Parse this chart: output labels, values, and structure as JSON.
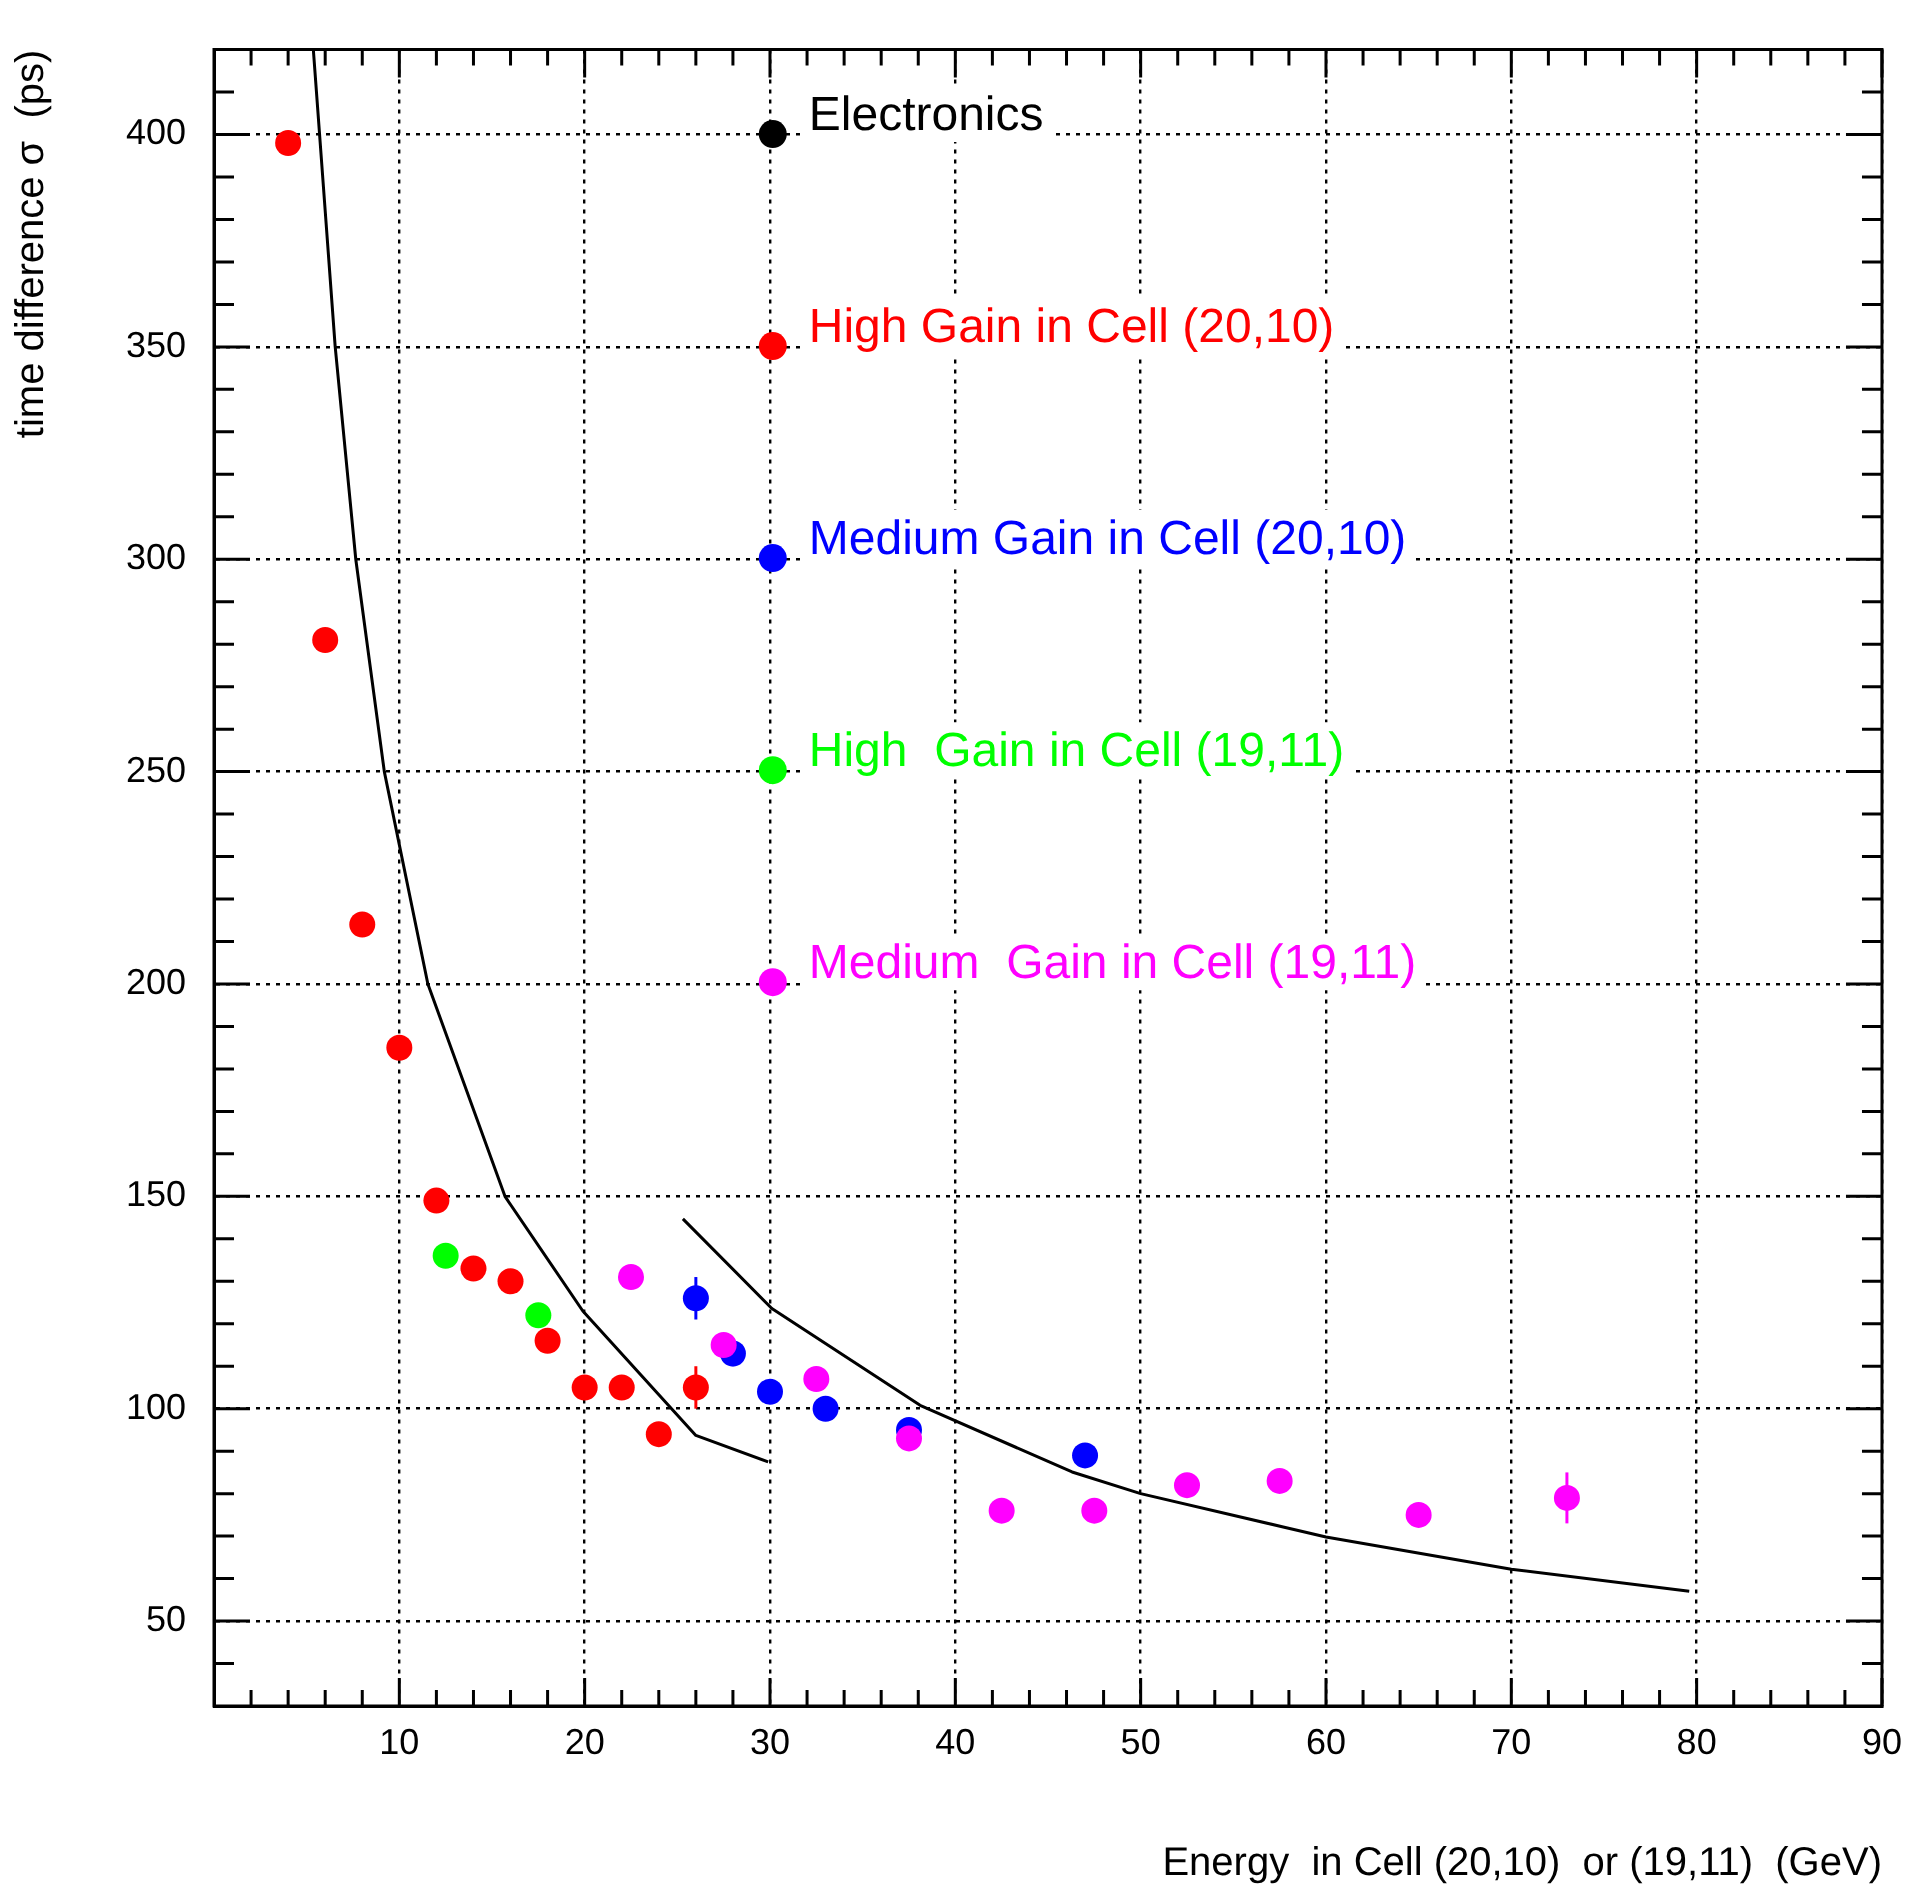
{
  "chart_data": {
    "type": "scatter",
    "xlabel": "Energy  in Cell (20,10)  or (19,11)  (GeV)",
    "ylabel": "time difference σ  (ps)",
    "xlim": [
      0,
      90
    ],
    "ylim": [
      30,
      420
    ],
    "xticks": [
      {
        "value": 2,
        "label": null
      },
      {
        "value": 4,
        "label": null
      },
      {
        "value": 6,
        "label": null
      },
      {
        "value": 8,
        "label": null
      },
      10,
      {
        "value": 12,
        "label": null
      },
      {
        "value": 14,
        "label": null
      },
      {
        "value": 16,
        "label": null
      },
      {
        "value": 18,
        "label": null
      },
      20,
      {
        "value": 22,
        "label": null
      },
      {
        "value": 24,
        "label": null
      },
      {
        "value": 26,
        "label": null
      },
      {
        "value": 28,
        "label": null
      },
      30,
      {
        "value": 32,
        "label": null
      },
      {
        "value": 34,
        "label": null
      },
      {
        "value": 36,
        "label": null
      },
      {
        "value": 38,
        "label": null
      },
      40,
      {
        "value": 42,
        "label": null
      },
      {
        "value": 44,
        "label": null
      },
      {
        "value": 46,
        "label": null
      },
      {
        "value": 48,
        "label": null
      },
      50,
      {
        "value": 52,
        "label": null
      },
      {
        "value": 54,
        "label": null
      },
      {
        "value": 56,
        "label": null
      },
      {
        "value": 58,
        "label": null
      },
      60,
      {
        "value": 62,
        "label": null
      },
      {
        "value": 64,
        "label": null
      },
      {
        "value": 66,
        "label": null
      },
      {
        "value": 68,
        "label": null
      },
      70,
      {
        "value": 72,
        "label": null
      },
      {
        "value": 74,
        "label": null
      },
      {
        "value": 76,
        "label": null
      },
      {
        "value": 78,
        "label": null
      },
      80,
      {
        "value": 82,
        "label": null
      },
      {
        "value": 84,
        "label": null
      },
      {
        "value": 86,
        "label": null
      },
      {
        "value": 88,
        "label": null
      },
      90
    ],
    "yticks": [
      {
        "value": 40,
        "label": null
      },
      50,
      {
        "value": 60,
        "label": null
      },
      {
        "value": 70,
        "label": null
      },
      {
        "value": 80,
        "label": null
      },
      {
        "value": 90,
        "label": null
      },
      100,
      {
        "value": 110,
        "label": null
      },
      {
        "value": 120,
        "label": null
      },
      {
        "value": 130,
        "label": null
      },
      {
        "value": 140,
        "label": null
      },
      150,
      {
        "value": 160,
        "label": null
      },
      {
        "value": 170,
        "label": null
      },
      {
        "value": 180,
        "label": null
      },
      {
        "value": 190,
        "label": null
      },
      200,
      {
        "value": 210,
        "label": null
      },
      {
        "value": 220,
        "label": null
      },
      {
        "value": 230,
        "label": null
      },
      {
        "value": 240,
        "label": null
      },
      250,
      {
        "value": 260,
        "label": null
      },
      {
        "value": 270,
        "label": null
      },
      {
        "value": 280,
        "label": null
      },
      {
        "value": 290,
        "label": null
      },
      300,
      {
        "value": 310,
        "label": null
      },
      {
        "value": 320,
        "label": null
      },
      {
        "value": 330,
        "label": null
      },
      {
        "value": 340,
        "label": null
      },
      350,
      {
        "value": 360,
        "label": null
      },
      {
        "value": 370,
        "label": null
      },
      {
        "value": 380,
        "label": null
      },
      {
        "value": 390,
        "label": null
      },
      400,
      {
        "value": 410,
        "label": null
      }
    ],
    "grid": true,
    "legend": "top",
    "marker": "circle",
    "series": [
      {
        "name": "Electronics",
        "type": "line",
        "marker": "none",
        "color": "#000000",
        "x": [
          5.36,
          6.54,
          7.65,
          9.19,
          11.54,
          15.7,
          19.9,
          26,
          29.9,
          27.6,
          25.3,
          30.1,
          38.1,
          46.3,
          50,
          60,
          70,
          79.6
        ],
        "values": [
          420,
          350,
          300,
          250,
          200,
          150,
          123,
          93.7,
          87.5,
          null,
          144.7,
          123.6,
          100.8,
          85.1,
          80,
          69.8,
          62.2,
          57
        ]
      },
      {
        "name": "High Gain in Cell (20,10)",
        "color": "#ff0000",
        "x": [
          4,
          6,
          8,
          10,
          12,
          14,
          16,
          18,
          20,
          22,
          24,
          26
        ],
        "values": [
          398,
          281,
          214,
          185,
          149,
          133,
          130,
          116,
          105,
          105,
          94,
          105
        ],
        "errors": [
          null,
          null,
          null,
          null,
          null,
          null,
          null,
          null,
          null,
          null,
          null,
          5
        ]
      },
      {
        "name": "Medium Gain in Cell (20,10)",
        "color": "#0000ff",
        "x": [
          26,
          28,
          30,
          33,
          37.5,
          47
        ],
        "values": [
          126,
          113,
          104,
          100,
          95,
          89
        ],
        "errors": [
          5,
          3,
          null,
          null,
          null,
          null
        ]
      },
      {
        "name": "High  Gain in Cell (19,11)",
        "color": "#00ff00",
        "x": [
          12.5,
          17.5
        ],
        "values": [
          136,
          122
        ]
      },
      {
        "name": "Medium  Gain in Cell (19,11)",
        "color": "#ff00ff",
        "x": [
          22.5,
          27.5,
          32.5,
          37.5,
          42.5,
          47.5,
          52.5,
          57.5,
          65,
          73
        ],
        "values": [
          131,
          115,
          107,
          93,
          76,
          76,
          82,
          83,
          75,
          79
        ],
        "errors": [
          null,
          null,
          null,
          null,
          null,
          null,
          null,
          null,
          null,
          6
        ]
      }
    ]
  }
}
